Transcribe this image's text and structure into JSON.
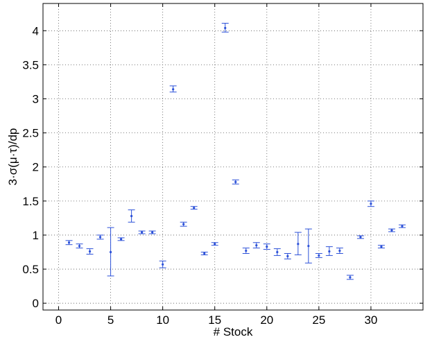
{
  "chart_data": {
    "type": "scatter",
    "xlabel": "# Stock",
    "ylabel": "3·σ(μ·τ)/dp",
    "xlim": [
      -1.5,
      35
    ],
    "ylim": [
      -0.1,
      4.4
    ],
    "xticks": [
      0,
      5,
      10,
      15,
      20,
      25,
      30
    ],
    "xtick_labels": [
      "0",
      "5",
      "10",
      "15",
      "20",
      "25",
      "30"
    ],
    "yticks": [
      0,
      0.5,
      1,
      1.5,
      2,
      2.5,
      3,
      3.5,
      4
    ],
    "ytick_labels": [
      "0",
      "0.5",
      "1",
      "1.5",
      "2",
      "2.5",
      "3",
      "3.5",
      "4"
    ],
    "grid": true,
    "color": "#2b50d8",
    "series": [
      {
        "x": [
          1,
          2,
          3,
          4,
          5,
          6,
          7,
          8,
          9,
          10,
          11,
          12,
          13,
          14,
          15,
          16,
          17,
          18,
          19,
          20,
          21,
          22,
          23,
          24,
          25,
          26,
          27,
          28,
          29,
          30,
          31,
          32,
          33
        ],
        "y": [
          0.89,
          0.84,
          0.76,
          0.97,
          0.75,
          0.94,
          1.28,
          1.04,
          1.04,
          0.57,
          3.14,
          1.16,
          1.4,
          0.73,
          0.87,
          4.04,
          1.78,
          0.77,
          0.85,
          0.83,
          0.75,
          0.69,
          0.87,
          0.84,
          0.7,
          0.76,
          0.77,
          0.38,
          0.97,
          1.46,
          0.83,
          1.07,
          1.13
        ],
        "lower": [
          0.86,
          0.81,
          0.72,
          0.94,
          0.4,
          0.92,
          1.19,
          1.02,
          1.02,
          0.52,
          3.1,
          1.13,
          1.38,
          0.71,
          0.85,
          3.98,
          1.75,
          0.73,
          0.81,
          0.79,
          0.7,
          0.65,
          0.71,
          0.59,
          0.67,
          0.7,
          0.73,
          0.35,
          0.95,
          1.42,
          0.81,
          1.05,
          1.11
        ],
        "upper": [
          0.92,
          0.87,
          0.8,
          1.0,
          1.11,
          0.96,
          1.37,
          1.06,
          1.06,
          0.62,
          3.19,
          1.19,
          1.42,
          0.75,
          0.89,
          4.11,
          1.81,
          0.81,
          0.89,
          0.87,
          0.8,
          0.73,
          1.04,
          1.09,
          0.73,
          0.83,
          0.81,
          0.41,
          0.99,
          1.5,
          0.85,
          1.09,
          1.15
        ]
      }
    ]
  }
}
